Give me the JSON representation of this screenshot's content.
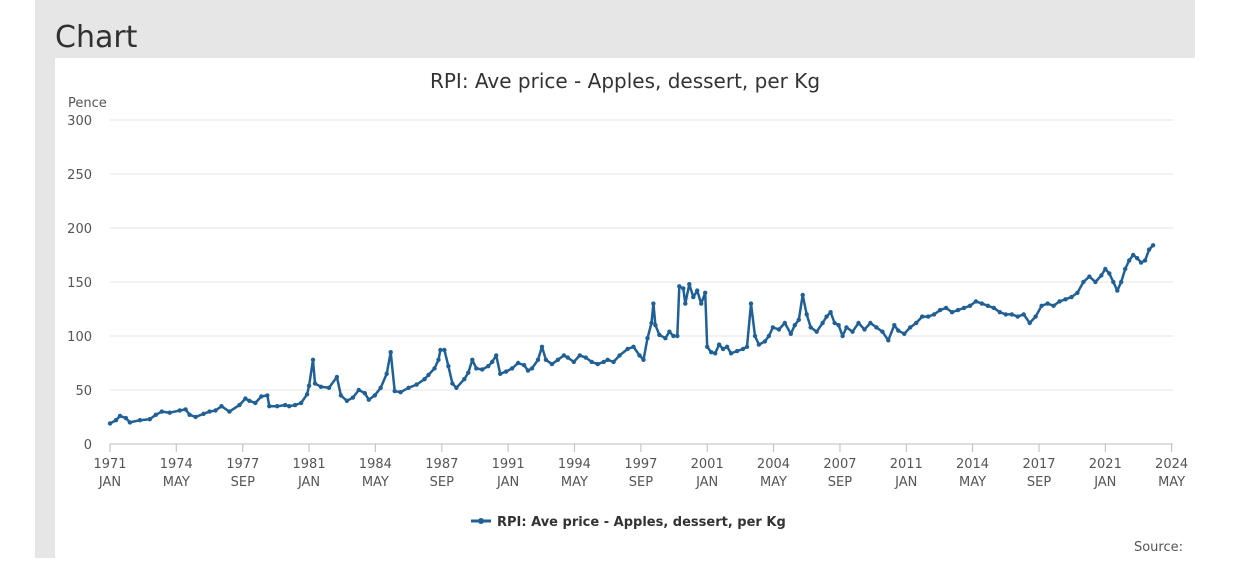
{
  "section_title": "Chart",
  "chart_data": {
    "type": "line",
    "title": "RPI: Ave price - Apples, dessert, per Kg",
    "ylabel": "Pence",
    "ylim": [
      0,
      300
    ],
    "yticks": [
      0,
      50,
      100,
      150,
      200,
      250,
      300
    ],
    "xlim": [
      1971.0,
      2024.4
    ],
    "xticks": [
      {
        "x": 1971.0,
        "year": "1971",
        "month": "JAN"
      },
      {
        "x": 1974.33,
        "year": "1974",
        "month": "MAY"
      },
      {
        "x": 1977.67,
        "year": "1977",
        "month": "SEP"
      },
      {
        "x": 1981.0,
        "year": "1981",
        "month": "JAN"
      },
      {
        "x": 1984.33,
        "year": "1984",
        "month": "MAY"
      },
      {
        "x": 1987.67,
        "year": "1987",
        "month": "SEP"
      },
      {
        "x": 1991.0,
        "year": "1991",
        "month": "JAN"
      },
      {
        "x": 1994.33,
        "year": "1994",
        "month": "MAY"
      },
      {
        "x": 1997.67,
        "year": "1997",
        "month": "SEP"
      },
      {
        "x": 2001.0,
        "year": "2001",
        "month": "JAN"
      },
      {
        "x": 2004.33,
        "year": "2004",
        "month": "MAY"
      },
      {
        "x": 2007.67,
        "year": "2007",
        "month": "SEP"
      },
      {
        "x": 2011.0,
        "year": "2011",
        "month": "JAN"
      },
      {
        "x": 2014.33,
        "year": "2014",
        "month": "MAY"
      },
      {
        "x": 2017.67,
        "year": "2017",
        "month": "SEP"
      },
      {
        "x": 2021.0,
        "year": "2021",
        "month": "JAN"
      },
      {
        "x": 2024.33,
        "year": "2024",
        "month": "MAY"
      }
    ],
    "series": [
      {
        "name": "RPI: Ave price - Apples, dessert, per Kg",
        "color": "#206095",
        "points": [
          [
            1971.0,
            19
          ],
          [
            1971.3,
            22
          ],
          [
            1971.5,
            26
          ],
          [
            1971.8,
            24
          ],
          [
            1972.0,
            20
          ],
          [
            1972.5,
            22
          ],
          [
            1973.0,
            23
          ],
          [
            1973.3,
            27
          ],
          [
            1973.6,
            30
          ],
          [
            1974.0,
            29
          ],
          [
            1974.5,
            31
          ],
          [
            1974.8,
            32
          ],
          [
            1975.0,
            27
          ],
          [
            1975.3,
            25
          ],
          [
            1975.7,
            28
          ],
          [
            1976.0,
            30
          ],
          [
            1976.3,
            31
          ],
          [
            1976.6,
            35
          ],
          [
            1977.0,
            30
          ],
          [
            1977.5,
            36
          ],
          [
            1977.8,
            42
          ],
          [
            1978.0,
            40
          ],
          [
            1978.3,
            38
          ],
          [
            1978.6,
            44
          ],
          [
            1978.9,
            45
          ],
          [
            1979.0,
            35
          ],
          [
            1979.4,
            35
          ],
          [
            1979.8,
            36
          ],
          [
            1980.0,
            35
          ],
          [
            1980.3,
            36
          ],
          [
            1980.6,
            38
          ],
          [
            1980.9,
            46
          ],
          [
            1981.0,
            54
          ],
          [
            1981.2,
            78
          ],
          [
            1981.3,
            56
          ],
          [
            1981.6,
            53
          ],
          [
            1982.0,
            52
          ],
          [
            1982.4,
            62
          ],
          [
            1982.6,
            45
          ],
          [
            1982.9,
            40
          ],
          [
            1983.2,
            43
          ],
          [
            1983.5,
            50
          ],
          [
            1983.8,
            47
          ],
          [
            1984.0,
            41
          ],
          [
            1984.3,
            45
          ],
          [
            1984.6,
            52
          ],
          [
            1984.9,
            65
          ],
          [
            1985.1,
            85
          ],
          [
            1985.3,
            49
          ],
          [
            1985.6,
            48
          ],
          [
            1986.0,
            52
          ],
          [
            1986.4,
            55
          ],
          [
            1986.8,
            60
          ],
          [
            1987.0,
            64
          ],
          [
            1987.3,
            70
          ],
          [
            1987.5,
            78
          ],
          [
            1987.6,
            87
          ],
          [
            1987.8,
            87
          ],
          [
            1988.0,
            72
          ],
          [
            1988.2,
            56
          ],
          [
            1988.4,
            52
          ],
          [
            1988.8,
            60
          ],
          [
            1989.0,
            66
          ],
          [
            1989.2,
            78
          ],
          [
            1989.4,
            70
          ],
          [
            1989.7,
            69
          ],
          [
            1990.0,
            72
          ],
          [
            1990.2,
            76
          ],
          [
            1990.4,
            82
          ],
          [
            1990.6,
            65
          ],
          [
            1990.9,
            67
          ],
          [
            1991.2,
            70
          ],
          [
            1991.5,
            75
          ],
          [
            1991.8,
            73
          ],
          [
            1992.0,
            68
          ],
          [
            1992.2,
            70
          ],
          [
            1992.5,
            78
          ],
          [
            1992.7,
            90
          ],
          [
            1992.9,
            78
          ],
          [
            1993.2,
            74
          ],
          [
            1993.5,
            78
          ],
          [
            1993.8,
            82
          ],
          [
            1994.0,
            80
          ],
          [
            1994.3,
            76
          ],
          [
            1994.6,
            82
          ],
          [
            1994.9,
            80
          ],
          [
            1995.2,
            76
          ],
          [
            1995.5,
            74
          ],
          [
            1995.8,
            76
          ],
          [
            1996.0,
            78
          ],
          [
            1996.3,
            76
          ],
          [
            1996.6,
            82
          ],
          [
            1997.0,
            88
          ],
          [
            1997.3,
            90
          ],
          [
            1997.6,
            82
          ],
          [
            1997.8,
            78
          ],
          [
            1998.0,
            98
          ],
          [
            1998.2,
            112
          ],
          [
            1998.3,
            130
          ],
          [
            1998.4,
            110
          ],
          [
            1998.6,
            101
          ],
          [
            1998.9,
            98
          ],
          [
            1999.1,
            104
          ],
          [
            1999.3,
            100
          ],
          [
            1999.5,
            100
          ],
          [
            1999.6,
            146
          ],
          [
            1999.8,
            144
          ],
          [
            1999.9,
            130
          ],
          [
            2000.1,
            148
          ],
          [
            2000.3,
            136
          ],
          [
            2000.5,
            142
          ],
          [
            2000.7,
            130
          ],
          [
            2000.9,
            140
          ],
          [
            2001.0,
            90
          ],
          [
            2001.2,
            85
          ],
          [
            2001.4,
            84
          ],
          [
            2001.6,
            92
          ],
          [
            2001.8,
            88
          ],
          [
            2002.0,
            90
          ],
          [
            2002.2,
            84
          ],
          [
            2002.5,
            86
          ],
          [
            2002.8,
            88
          ],
          [
            2003.0,
            90
          ],
          [
            2003.2,
            130
          ],
          [
            2003.4,
            100
          ],
          [
            2003.6,
            92
          ],
          [
            2003.9,
            95
          ],
          [
            2004.1,
            100
          ],
          [
            2004.3,
            108
          ],
          [
            2004.6,
            106
          ],
          [
            2004.9,
            112
          ],
          [
            2005.2,
            102
          ],
          [
            2005.4,
            110
          ],
          [
            2005.6,
            115
          ],
          [
            2005.8,
            138
          ],
          [
            2006.0,
            120
          ],
          [
            2006.2,
            108
          ],
          [
            2006.5,
            104
          ],
          [
            2006.8,
            112
          ],
          [
            2007.0,
            118
          ],
          [
            2007.2,
            122
          ],
          [
            2007.4,
            112
          ],
          [
            2007.6,
            110
          ],
          [
            2007.8,
            100
          ],
          [
            2008.0,
            108
          ],
          [
            2008.3,
            104
          ],
          [
            2008.6,
            112
          ],
          [
            2008.9,
            106
          ],
          [
            2009.2,
            112
          ],
          [
            2009.5,
            108
          ],
          [
            2009.8,
            104
          ],
          [
            2010.1,
            96
          ],
          [
            2010.4,
            110
          ],
          [
            2010.6,
            105
          ],
          [
            2010.9,
            102
          ],
          [
            2011.2,
            108
          ],
          [
            2011.5,
            112
          ],
          [
            2011.8,
            118
          ],
          [
            2012.1,
            118
          ],
          [
            2012.4,
            120
          ],
          [
            2012.7,
            124
          ],
          [
            2013.0,
            126
          ],
          [
            2013.3,
            122
          ],
          [
            2013.6,
            124
          ],
          [
            2013.9,
            126
          ],
          [
            2014.2,
            128
          ],
          [
            2014.5,
            132
          ],
          [
            2014.8,
            130
          ],
          [
            2015.1,
            128
          ],
          [
            2015.4,
            126
          ],
          [
            2015.7,
            122
          ],
          [
            2016.0,
            120
          ],
          [
            2016.3,
            120
          ],
          [
            2016.6,
            118
          ],
          [
            2016.9,
            120
          ],
          [
            2017.2,
            112
          ],
          [
            2017.5,
            118
          ],
          [
            2017.8,
            128
          ],
          [
            2018.1,
            130
          ],
          [
            2018.4,
            128
          ],
          [
            2018.7,
            132
          ],
          [
            2019.0,
            134
          ],
          [
            2019.3,
            136
          ],
          [
            2019.6,
            140
          ],
          [
            2019.9,
            150
          ],
          [
            2020.2,
            155
          ],
          [
            2020.5,
            150
          ],
          [
            2020.8,
            156
          ],
          [
            2021.0,
            162
          ],
          [
            2021.2,
            158
          ],
          [
            2021.4,
            150
          ],
          [
            2021.6,
            142
          ],
          [
            2021.8,
            150
          ],
          [
            2022.0,
            162
          ],
          [
            2022.2,
            170
          ],
          [
            2022.4,
            175
          ],
          [
            2022.6,
            172
          ],
          [
            2022.8,
            168
          ],
          [
            2023.0,
            170
          ],
          [
            2023.2,
            180
          ],
          [
            2023.4,
            184
          ]
        ]
      }
    ],
    "legend": "bottom-center",
    "grid": true,
    "source_label": "Source:"
  }
}
